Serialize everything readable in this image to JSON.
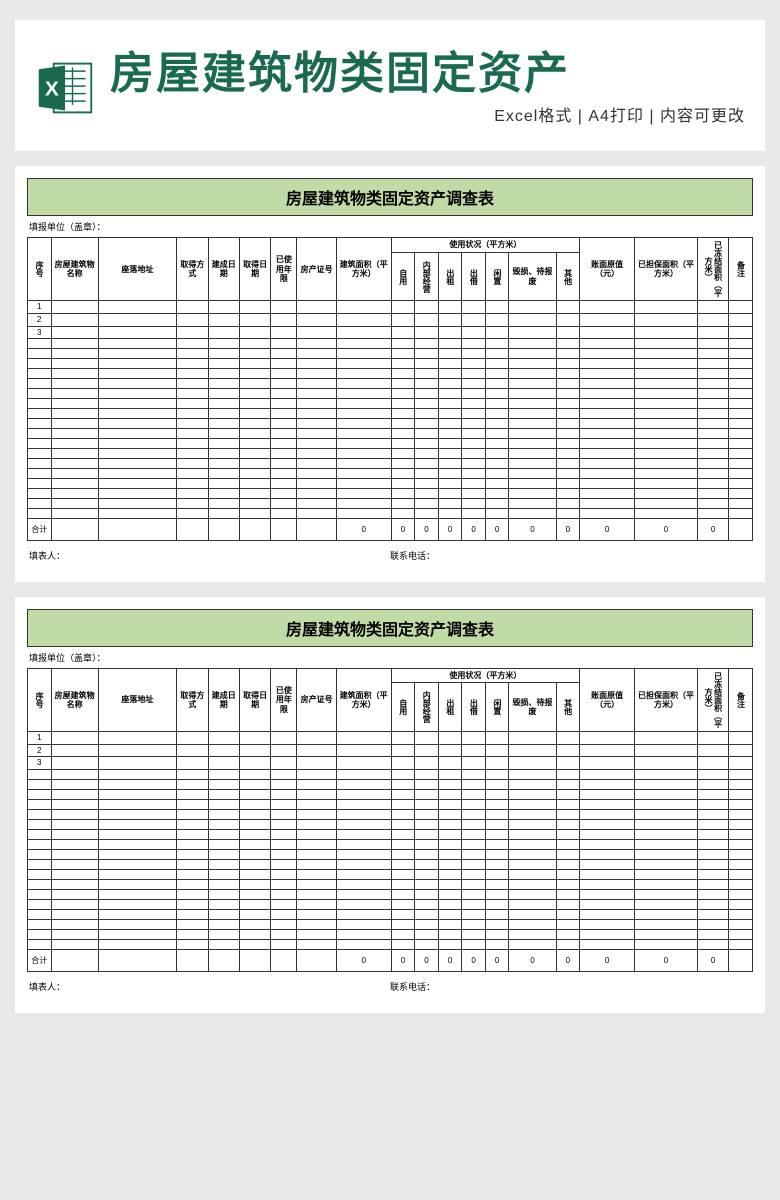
{
  "banner": {
    "main_title": "房屋建筑物类固定资产",
    "sub_title": "Excel格式 | A4打印 | 内容可更改"
  },
  "sheet": {
    "title": "房屋建筑物类固定资产调查表",
    "report_unit_label": "填报单位（盖章）：",
    "columns": {
      "seq": "序号",
      "name": "房屋建筑物名称",
      "address": "座落地址",
      "acquire_method": "取得方式",
      "build_date": "建成日期",
      "acquire_date": "取得日期",
      "used_years": "已使用年限",
      "property_cert": "房产证号",
      "area": "建筑面积（平方米）",
      "usage_header": "使用状况（平方米）",
      "usage_self": "自用",
      "usage_internal": "内部经营",
      "usage_rent": "出租",
      "usage_lend": "出借",
      "usage_idle": "闲置",
      "usage_damage": "毁损、待报废",
      "usage_other": "其他",
      "book_value": "账面原值（元）",
      "collateral_area": "已担保面积（平方米）",
      "frozen_area": "已冻结面积（平方米）",
      "remark": "备注"
    },
    "row_nums": [
      "1",
      "2",
      "3"
    ],
    "blank_rows": 18,
    "totals_label": "合计",
    "totals": {
      "area": "0",
      "self": "0",
      "internal": "0",
      "rent": "0",
      "lend": "0",
      "idle": "0",
      "damage": "0",
      "other": "0",
      "book": "0",
      "collateral": "0",
      "frozen": "0"
    },
    "footer_filler": "填表人：",
    "footer_phone": "联系电话："
  },
  "colors": {
    "title_green": "#1a6b4e",
    "bar_green": "#c1dba6",
    "bg_gray": "#e8e8e8",
    "border": "#333333"
  }
}
